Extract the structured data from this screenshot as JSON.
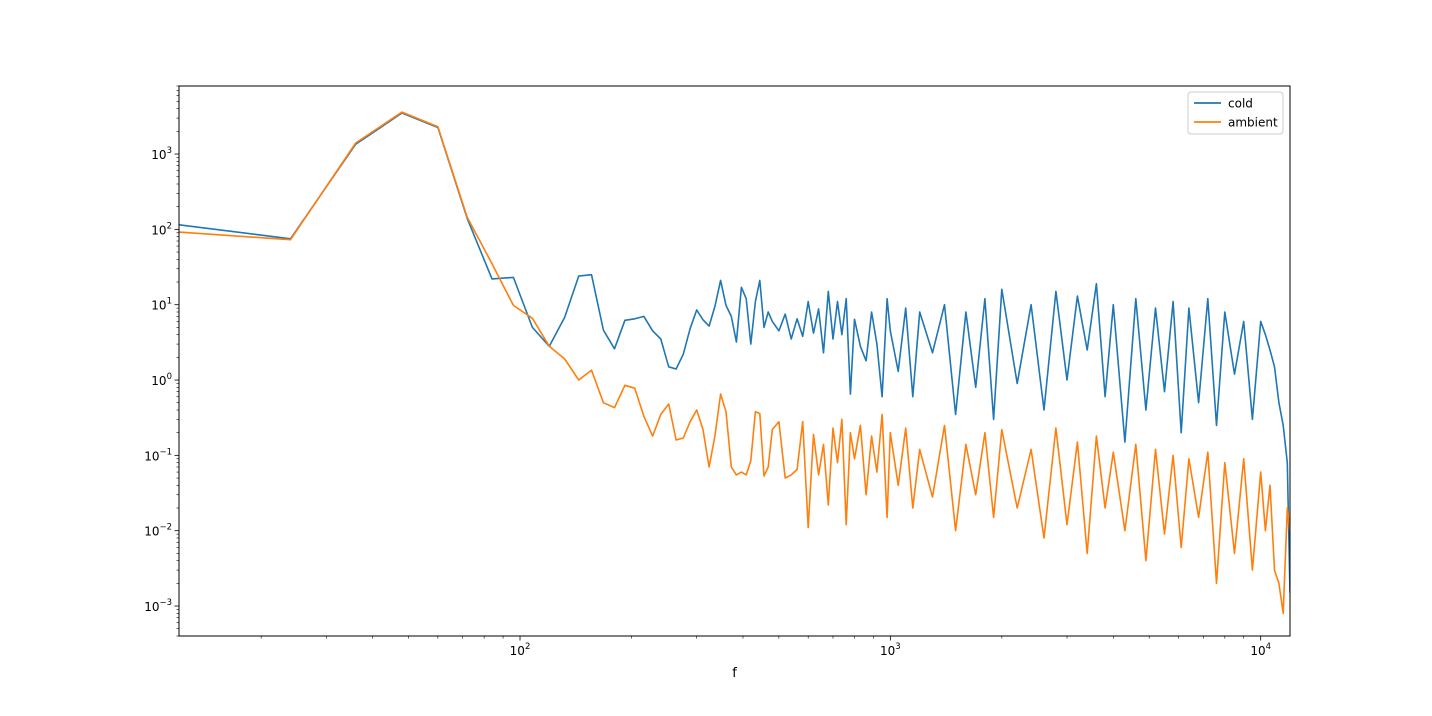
{
  "chart_data": {
    "type": "line",
    "title": "",
    "xlabel": "f",
    "ylabel": "",
    "xscale": "log",
    "yscale": "log",
    "xlim": [
      12,
      12000
    ],
    "ylim": [
      0.0004,
      8000
    ],
    "x_ticks": [
      {
        "value": 100,
        "base": "10",
        "exp": "2"
      },
      {
        "value": 1000,
        "base": "10",
        "exp": "3"
      },
      {
        "value": 10000,
        "base": "10",
        "exp": "4"
      }
    ],
    "y_ticks": [
      {
        "value": 0.001,
        "base": "10",
        "exp": "−3"
      },
      {
        "value": 0.01,
        "base": "10",
        "exp": "−2"
      },
      {
        "value": 0.1,
        "base": "10",
        "exp": "−1"
      },
      {
        "value": 1,
        "base": "10",
        "exp": "0"
      },
      {
        "value": 10,
        "base": "10",
        "exp": "1"
      },
      {
        "value": 100,
        "base": "10",
        "exp": "2"
      },
      {
        "value": 1000,
        "base": "10",
        "exp": "3"
      }
    ],
    "grid": false,
    "legend_position": "top-right",
    "series": [
      {
        "name": "cold",
        "color": "#1f77b4",
        "x": [
          12,
          24,
          36,
          48,
          60,
          72,
          84,
          96,
          108,
          120,
          132,
          144,
          156,
          168,
          180,
          192,
          204,
          216,
          228,
          240,
          252,
          264,
          276,
          288,
          300,
          312,
          324,
          336,
          348,
          360,
          372,
          384,
          396,
          408,
          420,
          432,
          444,
          456,
          468,
          480,
          500,
          520,
          540,
          560,
          580,
          600,
          620,
          640,
          660,
          680,
          700,
          720,
          740,
          760,
          780,
          800,
          830,
          860,
          890,
          920,
          950,
          980,
          1000,
          1050,
          1100,
          1150,
          1200,
          1300,
          1400,
          1500,
          1600,
          1700,
          1800,
          1900,
          2000,
          2200,
          2400,
          2600,
          2800,
          3000,
          3200,
          3400,
          3600,
          3800,
          4000,
          4300,
          4600,
          4900,
          5200,
          5500,
          5800,
          6100,
          6400,
          6800,
          7200,
          7600,
          8000,
          8500,
          9000,
          9500,
          10000,
          10300,
          10600,
          10900,
          11200,
          11500,
          11800,
          12000
        ],
        "y": [
          115,
          75,
          1350,
          3500,
          2250,
          140,
          22,
          23,
          5.0,
          2.8,
          6.8,
          24,
          25,
          4.6,
          2.6,
          6.2,
          6.5,
          7.0,
          4.5,
          3.5,
          1.5,
          1.4,
          2.2,
          4.8,
          8.5,
          6.3,
          5.2,
          9.5,
          21,
          9.8,
          7.0,
          3.2,
          17,
          12,
          3.0,
          11,
          21,
          5.0,
          8.0,
          6.0,
          4.5,
          7.5,
          3.5,
          6.5,
          3.8,
          11,
          4.2,
          8.8,
          2.3,
          15,
          3.5,
          11,
          4.0,
          12,
          0.65,
          6.4,
          2.8,
          1.8,
          8.0,
          3.0,
          0.6,
          12,
          4.5,
          1.3,
          9.0,
          0.6,
          8.0,
          2.3,
          10,
          0.35,
          8.0,
          0.8,
          12,
          0.3,
          16,
          0.9,
          10,
          0.4,
          15,
          1.0,
          13,
          2.5,
          19,
          0.6,
          10,
          0.15,
          12,
          0.4,
          9.0,
          0.7,
          11,
          0.2,
          9.0,
          0.5,
          12,
          0.25,
          8.0,
          1.2,
          6.0,
          0.3,
          6.0,
          4.0,
          2.5,
          1.5,
          0.5,
          0.25,
          0.08,
          0.0015
        ]
      },
      {
        "name": "ambient",
        "color": "#ff7f0e",
        "x": [
          12,
          24,
          36,
          48,
          60,
          72,
          84,
          96,
          108,
          120,
          132,
          144,
          156,
          168,
          180,
          192,
          204,
          216,
          228,
          240,
          252,
          264,
          276,
          288,
          300,
          312,
          324,
          336,
          348,
          360,
          372,
          384,
          396,
          408,
          420,
          432,
          444,
          456,
          468,
          480,
          500,
          520,
          540,
          560,
          580,
          600,
          620,
          640,
          660,
          680,
          700,
          720,
          740,
          760,
          780,
          800,
          830,
          860,
          890,
          920,
          950,
          980,
          1000,
          1050,
          1100,
          1150,
          1200,
          1300,
          1400,
          1500,
          1600,
          1700,
          1800,
          1900,
          2000,
          2200,
          2400,
          2600,
          2800,
          3000,
          3200,
          3400,
          3600,
          3800,
          4000,
          4300,
          4600,
          4900,
          5200,
          5500,
          5800,
          6100,
          6400,
          6800,
          7200,
          7600,
          8000,
          8500,
          9000,
          9500,
          10000,
          10300,
          10600,
          10900,
          11200,
          11500,
          11800,
          12000
        ],
        "y": [
          92,
          73,
          1400,
          3600,
          2300,
          145,
          35,
          9.8,
          6.6,
          2.8,
          1.9,
          1.0,
          1.35,
          0.5,
          0.43,
          0.85,
          0.78,
          0.33,
          0.18,
          0.35,
          0.48,
          0.16,
          0.17,
          0.28,
          0.4,
          0.22,
          0.07,
          0.18,
          0.65,
          0.38,
          0.07,
          0.055,
          0.06,
          0.055,
          0.085,
          0.38,
          0.36,
          0.053,
          0.07,
          0.22,
          0.28,
          0.05,
          0.055,
          0.065,
          0.28,
          0.011,
          0.19,
          0.055,
          0.14,
          0.022,
          0.23,
          0.08,
          0.3,
          0.012,
          0.2,
          0.09,
          0.25,
          0.03,
          0.18,
          0.06,
          0.35,
          0.015,
          0.2,
          0.04,
          0.23,
          0.02,
          0.12,
          0.028,
          0.25,
          0.01,
          0.14,
          0.03,
          0.2,
          0.015,
          0.22,
          0.02,
          0.12,
          0.008,
          0.23,
          0.012,
          0.15,
          0.005,
          0.18,
          0.02,
          0.11,
          0.01,
          0.14,
          0.004,
          0.12,
          0.009,
          0.1,
          0.006,
          0.09,
          0.015,
          0.11,
          0.002,
          0.08,
          0.005,
          0.09,
          0.003,
          0.06,
          0.01,
          0.04,
          0.003,
          0.002,
          0.0008,
          0.02,
          0.01
        ]
      }
    ]
  }
}
